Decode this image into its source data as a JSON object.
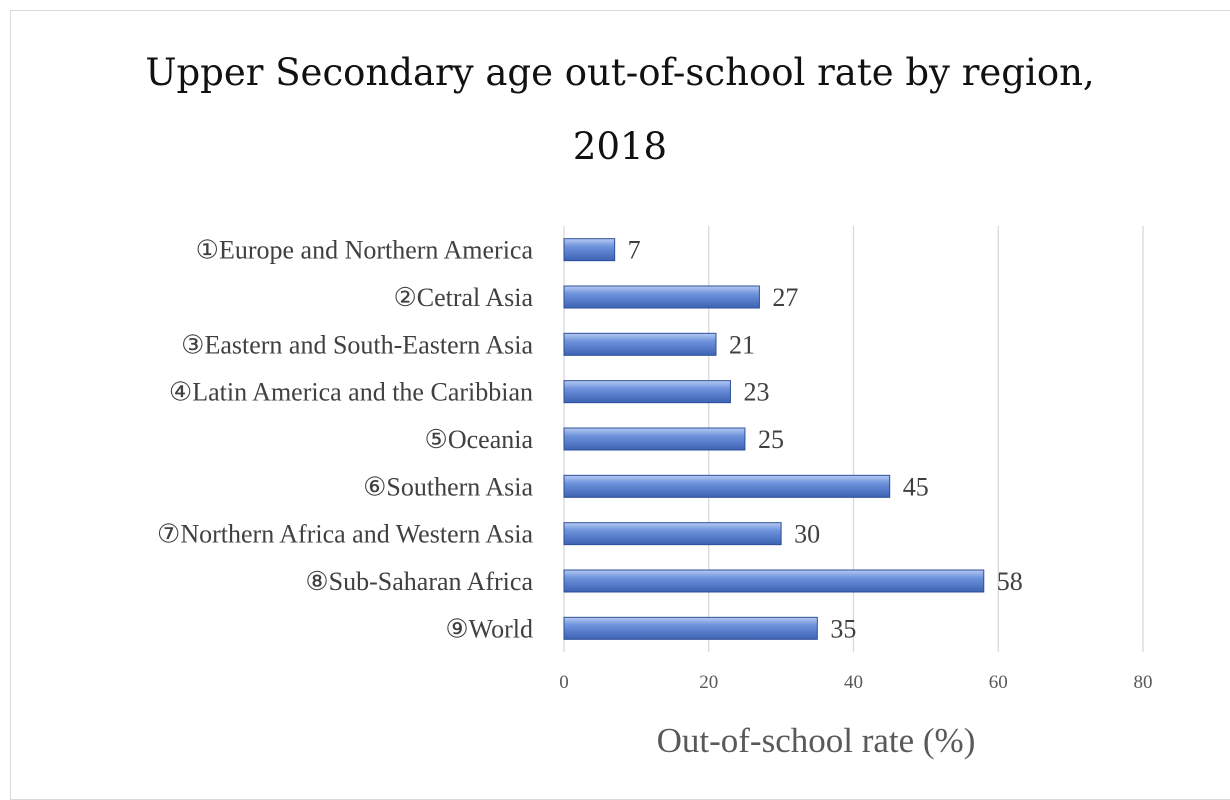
{
  "chart_data": {
    "type": "bar",
    "orientation": "horizontal",
    "title": "Upper Secondary age out-of-school rate by region,\n2018",
    "categories": [
      "①Europe and Northern America",
      "②Cetral Asia",
      "③Eastern and South-Eastern Asia",
      "④Latin America and the Caribbian",
      "⑤Oceania",
      "⑥Southern Asia",
      "⑦Northern Africa and Western Asia",
      "⑧Sub-Saharan Africa",
      "⑨World"
    ],
    "values": [
      7,
      27,
      21,
      23,
      25,
      45,
      30,
      58,
      35
    ],
    "xlabel": "Out-of-school rate (%)",
    "ylabel": "",
    "xlim": [
      0,
      80
    ],
    "xticks": [
      0,
      20,
      40,
      60,
      80
    ],
    "grid": true,
    "legend": "none",
    "colors": {
      "bar": "#4472c4",
      "bar_light": "#9db7ea",
      "bar_dark": "#2f4f9a",
      "grid": "#d9d9d9"
    }
  }
}
